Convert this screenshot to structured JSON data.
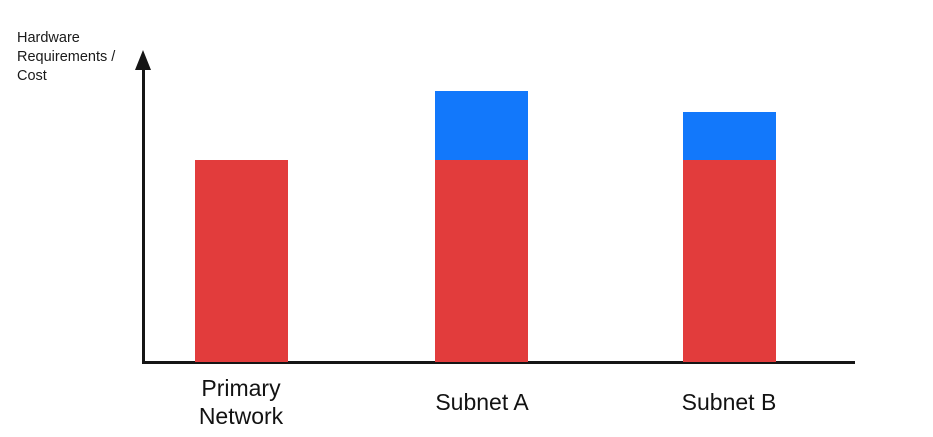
{
  "page": {
    "background": "#FFFFFF"
  },
  "axes": {
    "y_label_wrapped": "Hardware\nRequirements /\nCost",
    "axis_color": "#151515"
  },
  "chart_data": {
    "type": "bar",
    "stacked": true,
    "title": "",
    "xlabel": "",
    "ylabel": "Hardware Requirements / Cost",
    "categories": [
      "Primary Network",
      "Subnet A",
      "Subnet B"
    ],
    "series": [
      {
        "name": "red-segment",
        "color": "#E23C3C",
        "values": [
          100,
          100,
          100
        ]
      },
      {
        "name": "blue-segment",
        "color": "#1278FB",
        "values": [
          0,
          34,
          24
        ]
      }
    ],
    "value_axis": {
      "ticks_visible": false,
      "units": "relative (axis unlabeled)"
    },
    "legend_position": "none",
    "grid": false
  }
}
